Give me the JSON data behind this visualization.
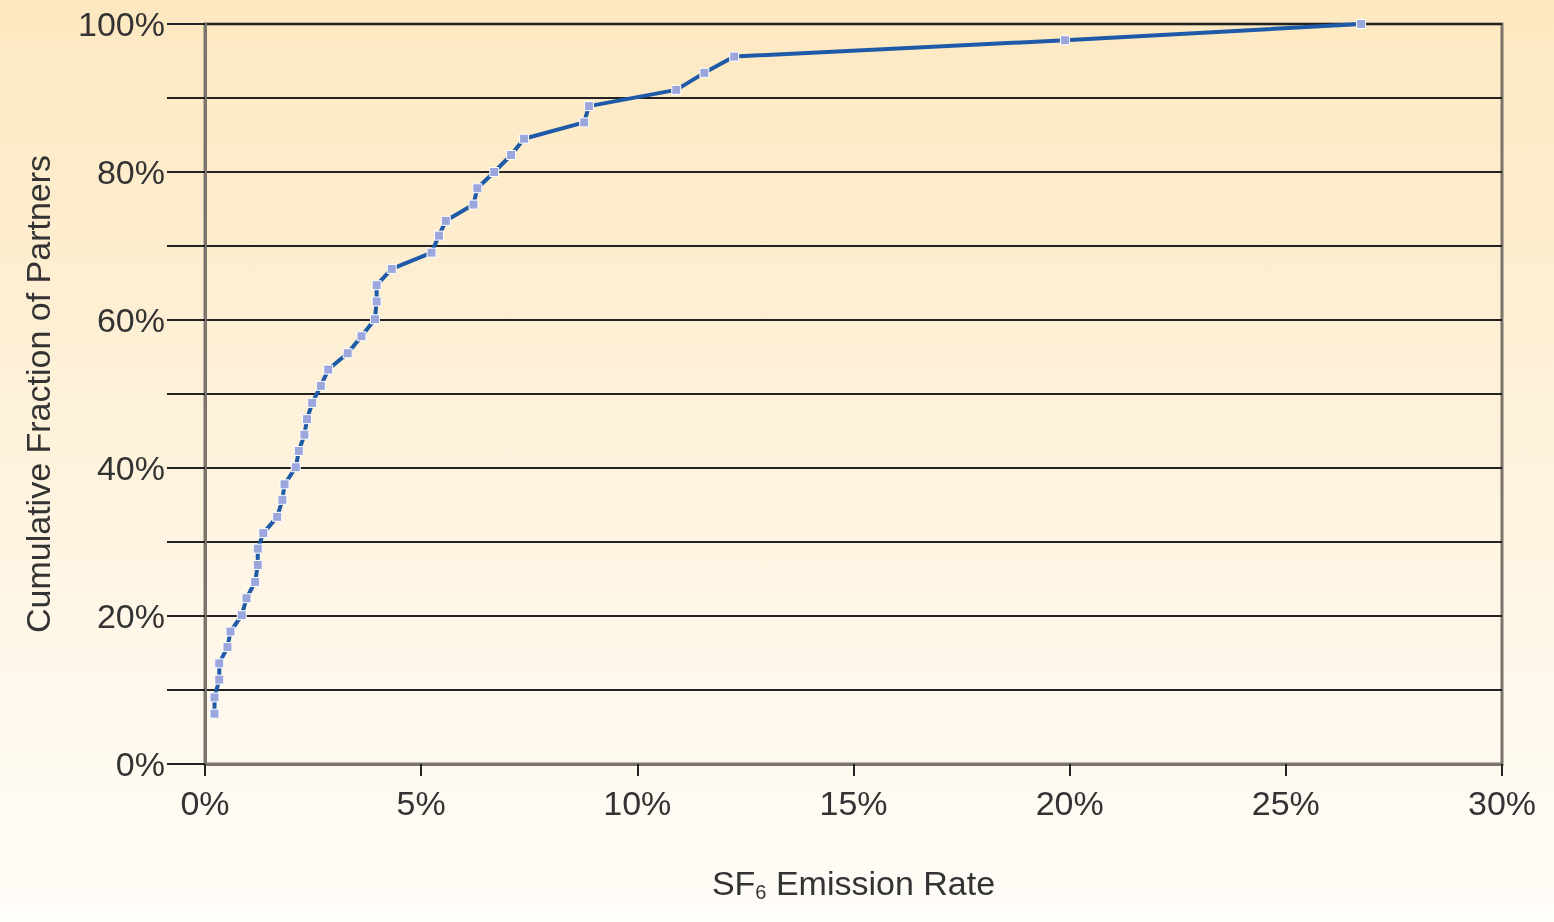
{
  "chart_data": {
    "type": "line",
    "xlabel": "SF$_{6}$ Emission Rate",
    "ylabel": "Cumulative Fraction of Partners",
    "x": [
      0.22,
      0.22,
      0.33,
      0.33,
      0.52,
      0.59,
      0.85,
      0.96,
      1.16,
      1.22,
      1.22,
      1.35,
      1.67,
      1.79,
      1.84,
      2.1,
      2.17,
      2.3,
      2.36,
      2.48,
      2.68,
      2.85,
      3.3,
      3.62,
      3.93,
      3.97,
      3.97,
      4.32,
      5.24,
      5.41,
      5.57,
      6.21,
      6.3,
      6.69,
      7.08,
      7.38,
      8.77,
      8.88,
      10.9,
      11.55,
      12.24,
      19.89,
      26.74
    ],
    "series": [
      {
        "color": "#1f5aa8",
        "values": [
          6.8,
          9.0,
          11.4,
          13.6,
          15.8,
          17.9,
          20.1,
          22.4,
          24.6,
          26.9,
          29.1,
          31.2,
          33.4,
          35.7,
          37.8,
          40.1,
          42.3,
          44.5,
          46.6,
          48.8,
          51.1,
          53.3,
          55.5,
          57.8,
          60.1,
          62.5,
          64.7,
          66.9,
          69.1,
          71.4,
          73.4,
          75.6,
          77.8,
          80.0,
          82.3,
          84.5,
          86.7,
          88.9,
          91.1,
          93.4,
          95.6,
          97.8,
          100
        ]
      }
    ],
    "marker": "square",
    "grid": "y",
    "xlim": [
      0,
      30
    ],
    "xticks": [
      {
        "value": 0,
        "label": "0%"
      },
      {
        "value": 5,
        "label": "5%"
      },
      {
        "value": 10,
        "label": "10%"
      },
      {
        "value": 15,
        "label": "15%"
      },
      {
        "value": 20,
        "label": "20%"
      },
      {
        "value": 25,
        "label": "25%"
      },
      {
        "value": 30,
        "label": "30%"
      }
    ],
    "ylim": [
      0,
      100
    ],
    "yticks": [
      {
        "value": 0,
        "label": "0%"
      },
      {
        "value": 10,
        "label": null
      },
      {
        "value": 20,
        "label": "20%"
      },
      {
        "value": 30,
        "label": null
      },
      {
        "value": 40,
        "label": "40%"
      },
      {
        "value": 50,
        "label": null
      },
      {
        "value": 60,
        "label": "60%"
      },
      {
        "value": 70,
        "label": null
      },
      {
        "value": 80,
        "label": "80%"
      },
      {
        "value": 90,
        "label": null
      },
      {
        "value": 100,
        "label": "100%"
      }
    ]
  }
}
